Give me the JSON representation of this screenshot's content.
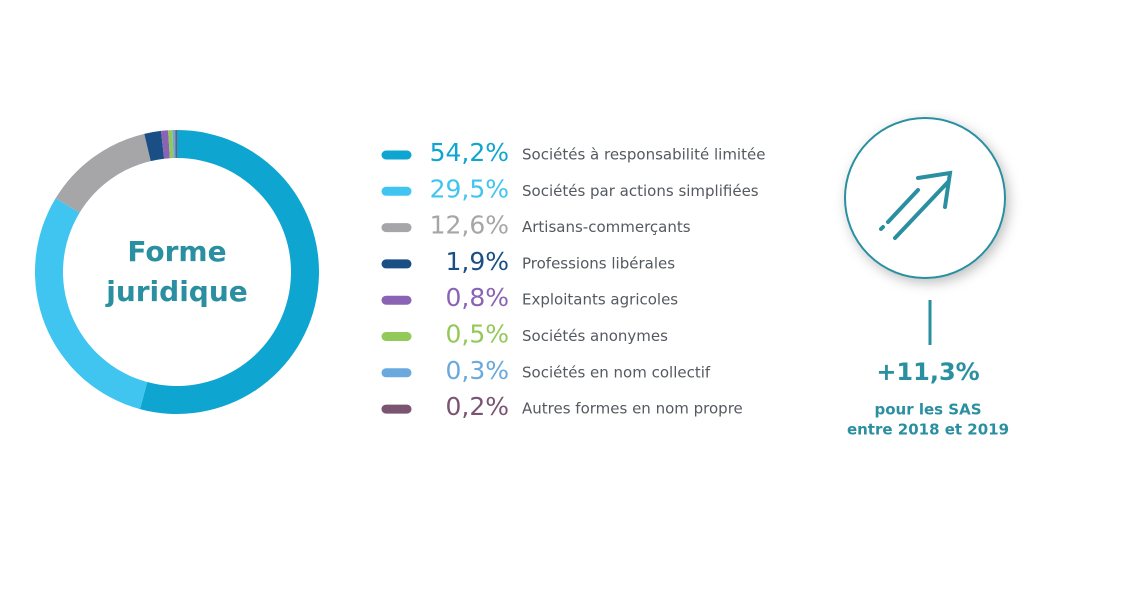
{
  "chart_data": {
    "type": "pie",
    "donut": true,
    "title": "Forme juridique",
    "categories": [
      "Sociétés à responsabilité limitée",
      "Sociétés par actions simplifiées",
      "Artisans-commerçants",
      "Professions libérales",
      "Exploitants agricoles",
      "Sociétés anonymes",
      "Sociétés en nom collectif",
      "Autres formes en nom propre"
    ],
    "values": [
      54.2,
      29.5,
      12.6,
      1.9,
      0.8,
      0.5,
      0.3,
      0.2
    ],
    "value_labels": [
      "54,2%",
      "29,5%",
      "12,6%",
      "1,9%",
      "0,8%",
      "0,5%",
      "0,3%",
      "0,2%"
    ],
    "colors": [
      "#0ea5d0",
      "#40c4f0",
      "#a6a6a9",
      "#1a4f85",
      "#8a63b5",
      "#93c958",
      "#6aa9dd",
      "#7a5470"
    ],
    "annotations": [
      "+11,3%",
      "pour les SAS",
      "entre 2018 et 2019"
    ]
  }
}
